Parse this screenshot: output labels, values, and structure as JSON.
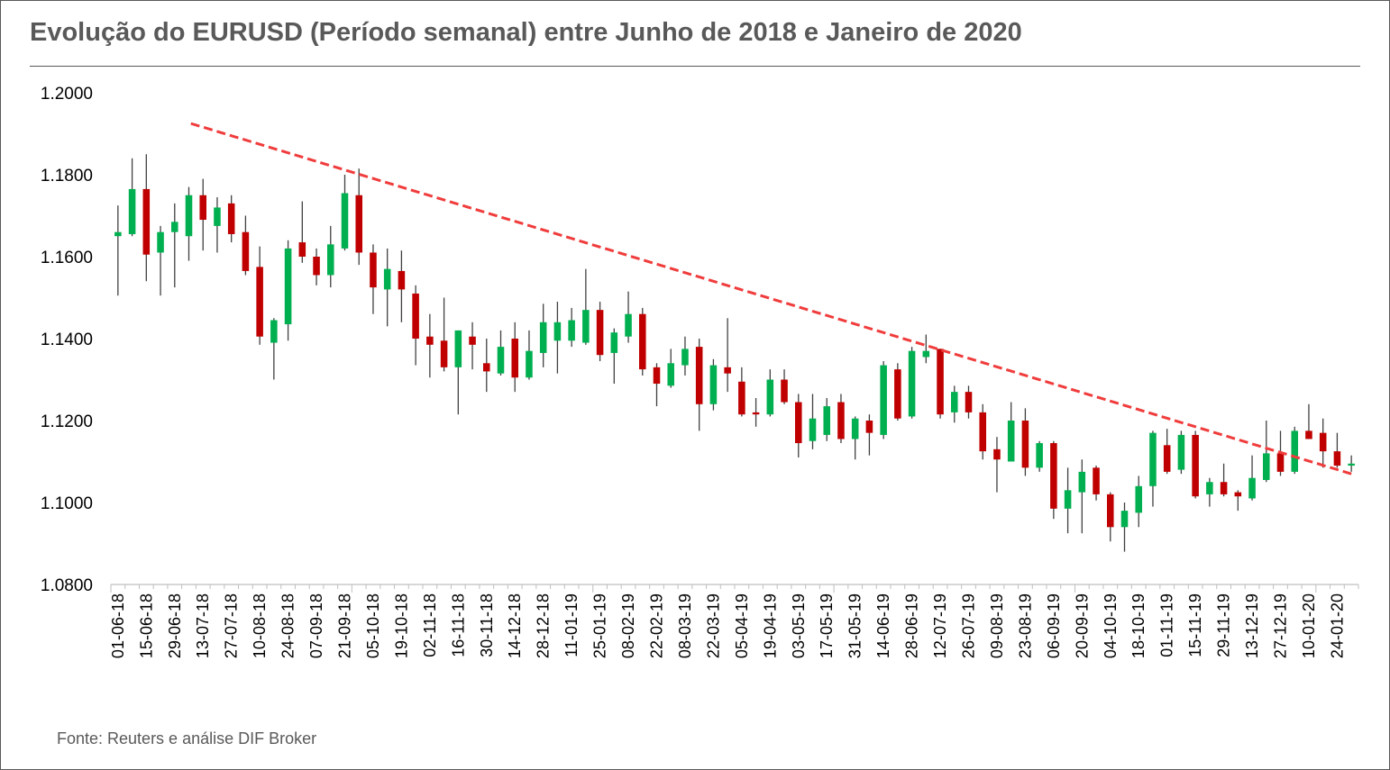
{
  "title": "Evolução do EURUSD (Período semanal) entre Junho de 2018 e Janeiro de 2020",
  "source": "Fonte: Reuters e análise DIF Broker",
  "colors": {
    "up": "#00b050",
    "down": "#c00000",
    "trendline": "#f03c3c",
    "text": "#595959"
  },
  "chart_data": {
    "type": "candlestick",
    "title": "Evolução do EURUSD (Período semanal) entre Junho de 2018 e Janeiro de 2020",
    "xlabel": "",
    "ylabel": "",
    "ylim": [
      1.08,
      1.2
    ],
    "y_ticks": [
      "1.0800",
      "1.1000",
      "1.1200",
      "1.1400",
      "1.1600",
      "1.1800",
      "1.2000"
    ],
    "x_tick_labels": [
      "01-06-18",
      "15-06-18",
      "29-06-18",
      "13-07-18",
      "27-07-18",
      "10-08-18",
      "24-08-18",
      "07-09-18",
      "21-09-18",
      "05-10-18",
      "19-10-18",
      "02-11-18",
      "16-11-18",
      "30-11-18",
      "14-12-18",
      "28-12-18",
      "11-01-19",
      "25-01-19",
      "08-02-19",
      "22-02-19",
      "08-03-19",
      "22-03-19",
      "05-04-19",
      "19-04-19",
      "03-05-19",
      "17-05-19",
      "31-05-19",
      "14-06-19",
      "28-06-19",
      "12-07-19",
      "26-07-19",
      "09-08-19",
      "23-08-19",
      "06-09-19",
      "20-09-19",
      "04-10-19",
      "18-10-19",
      "01-11-19",
      "15-11-19",
      "29-11-19",
      "13-12-19",
      "27-12-19",
      "10-01-20",
      "24-01-20"
    ],
    "grid": false,
    "legend": "none",
    "candles": [
      {
        "o": 1.165,
        "h": 1.1725,
        "l": 1.1505,
        "c": 1.166
      },
      {
        "o": 1.1655,
        "h": 1.184,
        "l": 1.165,
        "c": 1.1765
      },
      {
        "o": 1.1765,
        "h": 1.185,
        "l": 1.154,
        "c": 1.1605
      },
      {
        "o": 1.161,
        "h": 1.1675,
        "l": 1.1505,
        "c": 1.166
      },
      {
        "o": 1.166,
        "h": 1.173,
        "l": 1.1525,
        "c": 1.1685
      },
      {
        "o": 1.165,
        "h": 1.177,
        "l": 1.159,
        "c": 1.175
      },
      {
        "o": 1.175,
        "h": 1.179,
        "l": 1.1615,
        "c": 1.169
      },
      {
        "o": 1.1675,
        "h": 1.1745,
        "l": 1.161,
        "c": 1.172
      },
      {
        "o": 1.173,
        "h": 1.175,
        "l": 1.1635,
        "c": 1.1655
      },
      {
        "o": 1.166,
        "h": 1.17,
        "l": 1.1555,
        "c": 1.1565
      },
      {
        "o": 1.1575,
        "h": 1.1625,
        "l": 1.1385,
        "c": 1.1405
      },
      {
        "o": 1.139,
        "h": 1.145,
        "l": 1.13,
        "c": 1.1445
      },
      {
        "o": 1.1435,
        "h": 1.164,
        "l": 1.1395,
        "c": 1.162
      },
      {
        "o": 1.1635,
        "h": 1.1735,
        "l": 1.1585,
        "c": 1.16
      },
      {
        "o": 1.16,
        "h": 1.162,
        "l": 1.153,
        "c": 1.1555
      },
      {
        "o": 1.1555,
        "h": 1.1675,
        "l": 1.1525,
        "c": 1.163
      },
      {
        "o": 1.162,
        "h": 1.18,
        "l": 1.1615,
        "c": 1.1755
      },
      {
        "o": 1.175,
        "h": 1.1815,
        "l": 1.158,
        "c": 1.161
      },
      {
        "o": 1.161,
        "h": 1.163,
        "l": 1.146,
        "c": 1.1525
      },
      {
        "o": 1.152,
        "h": 1.162,
        "l": 1.143,
        "c": 1.157
      },
      {
        "o": 1.1565,
        "h": 1.1615,
        "l": 1.144,
        "c": 1.152
      },
      {
        "o": 1.151,
        "h": 1.153,
        "l": 1.1335,
        "c": 1.14
      },
      {
        "o": 1.1405,
        "h": 1.146,
        "l": 1.1305,
        "c": 1.1385
      },
      {
        "o": 1.1395,
        "h": 1.15,
        "l": 1.132,
        "c": 1.133
      },
      {
        "o": 1.133,
        "h": 1.142,
        "l": 1.1215,
        "c": 1.142
      },
      {
        "o": 1.1405,
        "h": 1.144,
        "l": 1.1325,
        "c": 1.1385
      },
      {
        "o": 1.134,
        "h": 1.14,
        "l": 1.127,
        "c": 1.132
      },
      {
        "o": 1.1315,
        "h": 1.142,
        "l": 1.131,
        "c": 1.138
      },
      {
        "o": 1.14,
        "h": 1.144,
        "l": 1.127,
        "c": 1.1305
      },
      {
        "o": 1.1305,
        "h": 1.142,
        "l": 1.13,
        "c": 1.137
      },
      {
        "o": 1.1365,
        "h": 1.1485,
        "l": 1.133,
        "c": 1.144
      },
      {
        "o": 1.1395,
        "h": 1.149,
        "l": 1.1315,
        "c": 1.144
      },
      {
        "o": 1.1395,
        "h": 1.1475,
        "l": 1.138,
        "c": 1.1445
      },
      {
        "o": 1.139,
        "h": 1.157,
        "l": 1.1385,
        "c": 1.147
      },
      {
        "o": 1.147,
        "h": 1.149,
        "l": 1.1345,
        "c": 1.136
      },
      {
        "o": 1.1365,
        "h": 1.1425,
        "l": 1.129,
        "c": 1.1415
      },
      {
        "o": 1.1405,
        "h": 1.1515,
        "l": 1.139,
        "c": 1.146
      },
      {
        "o": 1.146,
        "h": 1.1475,
        "l": 1.131,
        "c": 1.1325
      },
      {
        "o": 1.133,
        "h": 1.134,
        "l": 1.1235,
        "c": 1.129
      },
      {
        "o": 1.1285,
        "h": 1.1375,
        "l": 1.128,
        "c": 1.134
      },
      {
        "o": 1.1335,
        "h": 1.1405,
        "l": 1.131,
        "c": 1.1375
      },
      {
        "o": 1.138,
        "h": 1.14,
        "l": 1.1175,
        "c": 1.124
      },
      {
        "o": 1.124,
        "h": 1.135,
        "l": 1.1225,
        "c": 1.1335
      },
      {
        "o": 1.133,
        "h": 1.145,
        "l": 1.127,
        "c": 1.1315
      },
      {
        "o": 1.1295,
        "h": 1.133,
        "l": 1.121,
        "c": 1.1215
      },
      {
        "o": 1.122,
        "h": 1.1255,
        "l": 1.1185,
        "c": 1.1215
      },
      {
        "o": 1.1215,
        "h": 1.1325,
        "l": 1.121,
        "c": 1.13
      },
      {
        "o": 1.13,
        "h": 1.1325,
        "l": 1.124,
        "c": 1.1245
      },
      {
        "o": 1.1245,
        "h": 1.1265,
        "l": 1.111,
        "c": 1.1145
      },
      {
        "o": 1.115,
        "h": 1.1265,
        "l": 1.113,
        "c": 1.1205
      },
      {
        "o": 1.1165,
        "h": 1.1255,
        "l": 1.115,
        "c": 1.1235
      },
      {
        "o": 1.1245,
        "h": 1.1265,
        "l": 1.1145,
        "c": 1.1155
      },
      {
        "o": 1.1155,
        "h": 1.121,
        "l": 1.1105,
        "c": 1.1205
      },
      {
        "o": 1.12,
        "h": 1.1215,
        "l": 1.1115,
        "c": 1.117
      },
      {
        "o": 1.1165,
        "h": 1.1345,
        "l": 1.1155,
        "c": 1.1335
      },
      {
        "o": 1.1325,
        "h": 1.134,
        "l": 1.12,
        "c": 1.1205
      },
      {
        "o": 1.121,
        "h": 1.138,
        "l": 1.1205,
        "c": 1.137
      },
      {
        "o": 1.1355,
        "h": 1.141,
        "l": 1.134,
        "c": 1.137
      },
      {
        "o": 1.1375,
        "h": 1.1375,
        "l": 1.1205,
        "c": 1.1215
      },
      {
        "o": 1.122,
        "h": 1.1285,
        "l": 1.1195,
        "c": 1.127
      },
      {
        "o": 1.127,
        "h": 1.1285,
        "l": 1.1205,
        "c": 1.122
      },
      {
        "o": 1.122,
        "h": 1.124,
        "l": 1.1105,
        "c": 1.1125
      },
      {
        "o": 1.113,
        "h": 1.116,
        "l": 1.1025,
        "c": 1.1105
      },
      {
        "o": 1.11,
        "h": 1.1245,
        "l": 1.11,
        "c": 1.12
      },
      {
        "o": 1.12,
        "h": 1.123,
        "l": 1.1065,
        "c": 1.1085
      },
      {
        "o": 1.1085,
        "h": 1.115,
        "l": 1.1075,
        "c": 1.1145
      },
      {
        "o": 1.1145,
        "h": 1.115,
        "l": 1.096,
        "c": 1.0985
      },
      {
        "o": 1.0985,
        "h": 1.1085,
        "l": 1.0925,
        "c": 1.103
      },
      {
        "o": 1.1025,
        "h": 1.1105,
        "l": 1.0925,
        "c": 1.1075
      },
      {
        "o": 1.1085,
        "h": 1.109,
        "l": 1.1005,
        "c": 1.102
      },
      {
        "o": 1.102,
        "h": 1.1025,
        "l": 1.0905,
        "c": 1.094
      },
      {
        "o": 1.094,
        "h": 1.1,
        "l": 1.088,
        "c": 1.098
      },
      {
        "o": 1.0975,
        "h": 1.1065,
        "l": 1.094,
        "c": 1.104
      },
      {
        "o": 1.104,
        "h": 1.1175,
        "l": 1.099,
        "c": 1.117
      },
      {
        "o": 1.114,
        "h": 1.118,
        "l": 1.107,
        "c": 1.1075
      },
      {
        "o": 1.108,
        "h": 1.1175,
        "l": 1.107,
        "c": 1.1165
      },
      {
        "o": 1.1165,
        "h": 1.1175,
        "l": 1.101,
        "c": 1.1015
      },
      {
        "o": 1.102,
        "h": 1.106,
        "l": 1.099,
        "c": 1.105
      },
      {
        "o": 1.105,
        "h": 1.1095,
        "l": 1.1015,
        "c": 1.102
      },
      {
        "o": 1.1025,
        "h": 1.103,
        "l": 1.098,
        "c": 1.1015
      },
      {
        "o": 1.101,
        "h": 1.1115,
        "l": 1.1005,
        "c": 1.106
      },
      {
        "o": 1.1055,
        "h": 1.12,
        "l": 1.105,
        "c": 1.112
      },
      {
        "o": 1.112,
        "h": 1.1175,
        "l": 1.1065,
        "c": 1.1075
      },
      {
        "o": 1.1075,
        "h": 1.1185,
        "l": 1.107,
        "c": 1.1175
      },
      {
        "o": 1.1175,
        "h": 1.124,
        "l": 1.1155,
        "c": 1.1155
      },
      {
        "o": 1.117,
        "h": 1.1205,
        "l": 1.1085,
        "c": 1.1125
      },
      {
        "o": 1.1125,
        "h": 1.117,
        "l": 1.1085,
        "c": 1.109
      },
      {
        "o": 1.109,
        "h": 1.1115,
        "l": 1.1075,
        "c": 1.1095
      }
    ],
    "trendline": {
      "from": {
        "x": "07-07-18",
        "y": 1.1925
      },
      "to": {
        "x": "31-01-20",
        "y": 1.107
      }
    }
  }
}
